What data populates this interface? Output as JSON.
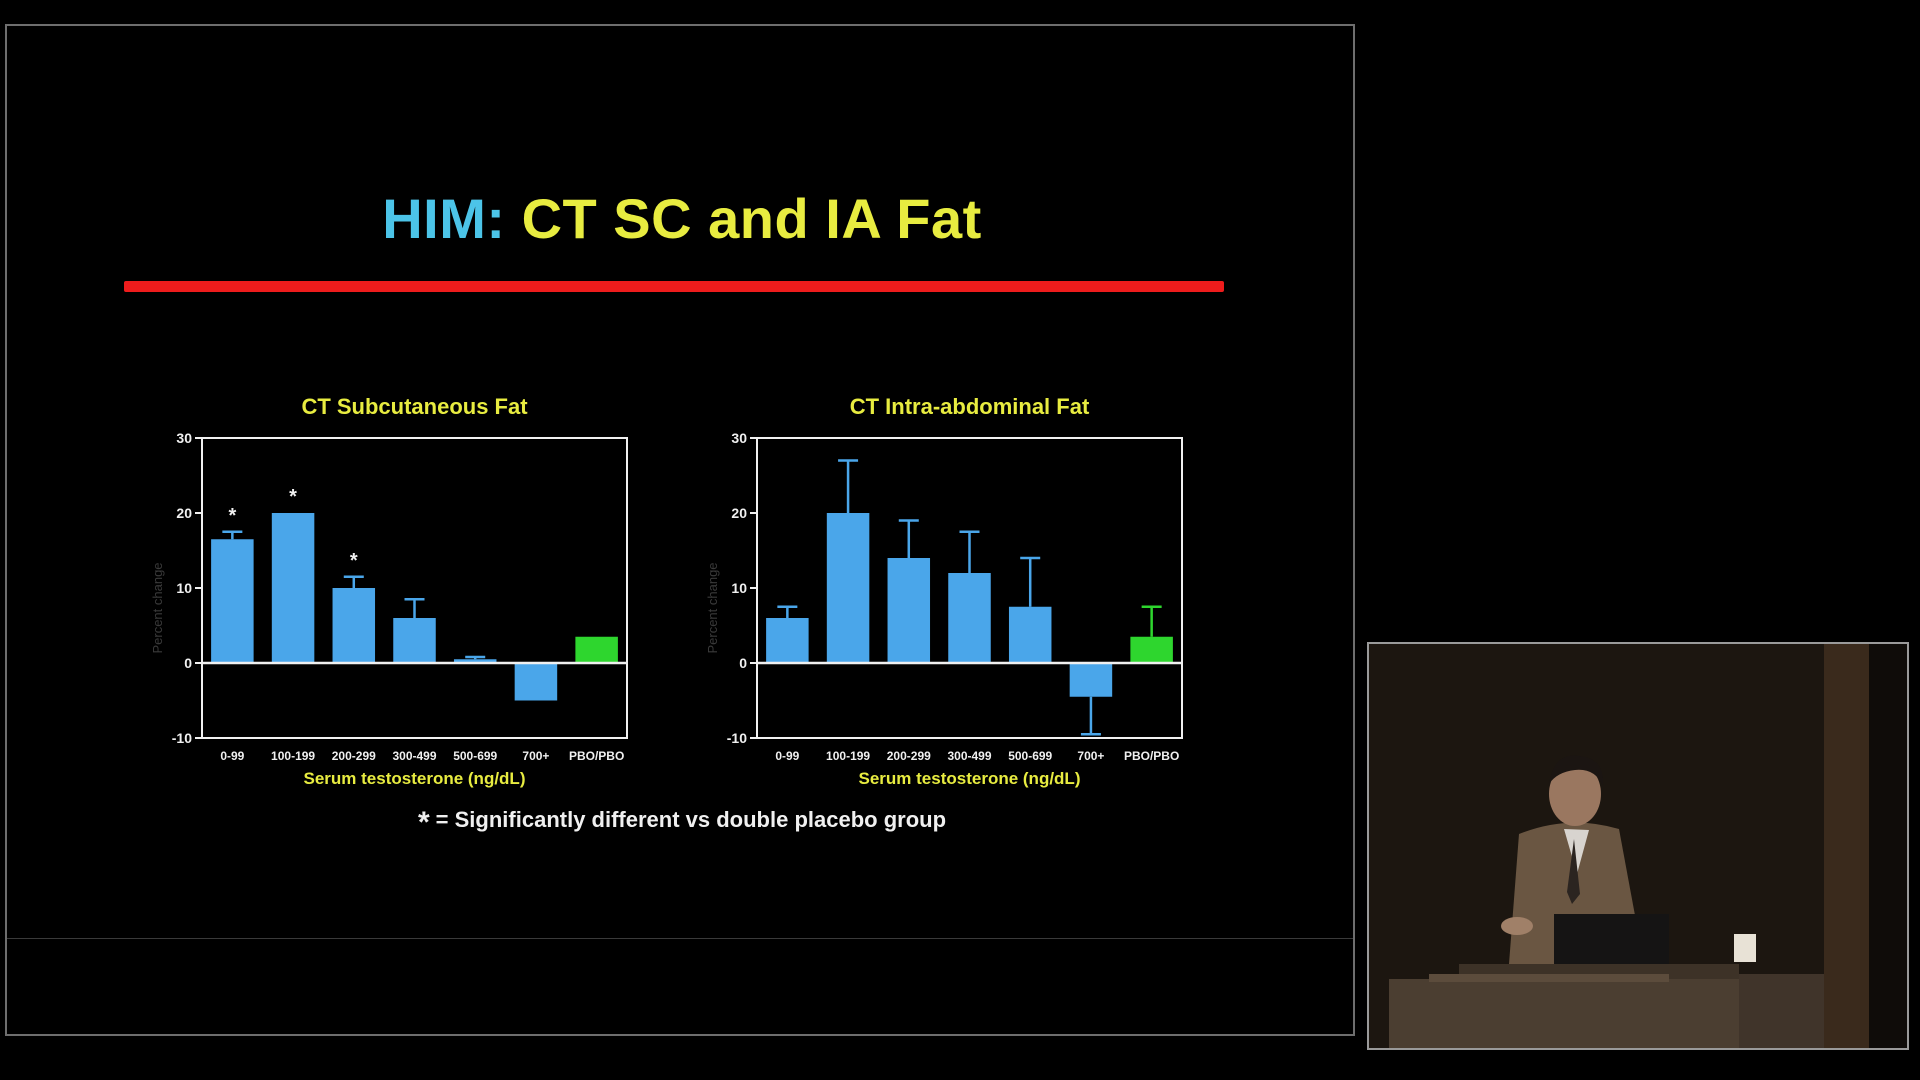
{
  "slide": {
    "title_prefix": "HIM:",
    "title_main": "CT SC and IA Fat",
    "footnote_symbol": "*",
    "footnote_text": "= Significantly different vs double placebo group",
    "colors": {
      "title_prefix": "#4cc4e8",
      "title_main": "#e8ec40",
      "underline": "#ee1c1c",
      "bar_treatment": "#4aa6ea",
      "bar_placebo": "#2ed62e",
      "chart_title": "#e8ec40",
      "axis": "#f0f0f0"
    }
  },
  "chart_data": [
    {
      "type": "bar",
      "title": "CT Subcutaneous Fat",
      "xlabel": "Serum testosterone (ng/dL)",
      "ylabel": "Percent change",
      "ylim": [
        -10,
        30
      ],
      "yticks": [
        "30",
        "20",
        "10",
        "0",
        "-10"
      ],
      "categories": [
        "0-99",
        "100-199",
        "200-299",
        "300-499",
        "500-699",
        "700+",
        "PBO/PBO"
      ],
      "values": [
        16.5,
        20,
        10,
        6,
        0.5,
        -5,
        3.5
      ],
      "error_up": [
        1,
        0,
        1.5,
        2.5,
        0.3,
        0,
        0
      ],
      "error_down": [
        0,
        0,
        0,
        0,
        0,
        0,
        0
      ],
      "significant": [
        true,
        true,
        true,
        false,
        false,
        false,
        false
      ],
      "placebo_index": 6,
      "grid": false,
      "legend": "none"
    },
    {
      "type": "bar",
      "title": "CT Intra-abdominal Fat",
      "xlabel": "Serum testosterone (ng/dL)",
      "ylabel": "Percent change",
      "ylim": [
        -10,
        30
      ],
      "yticks": [
        "30",
        "20",
        "10",
        "0",
        "-10"
      ],
      "categories": [
        "0-99",
        "100-199",
        "200-299",
        "300-499",
        "500-699",
        "700+",
        "PBO/PBO"
      ],
      "values": [
        6,
        20,
        14,
        12,
        7.5,
        -4.5,
        3.5
      ],
      "error_up": [
        1.5,
        7,
        5,
        5.5,
        6.5,
        0,
        4
      ],
      "error_down": [
        0,
        0,
        0,
        0,
        0,
        5,
        0
      ],
      "significant": [
        false,
        false,
        false,
        false,
        false,
        false,
        false
      ],
      "placebo_index": 6,
      "grid": false,
      "legend": "none"
    }
  ]
}
